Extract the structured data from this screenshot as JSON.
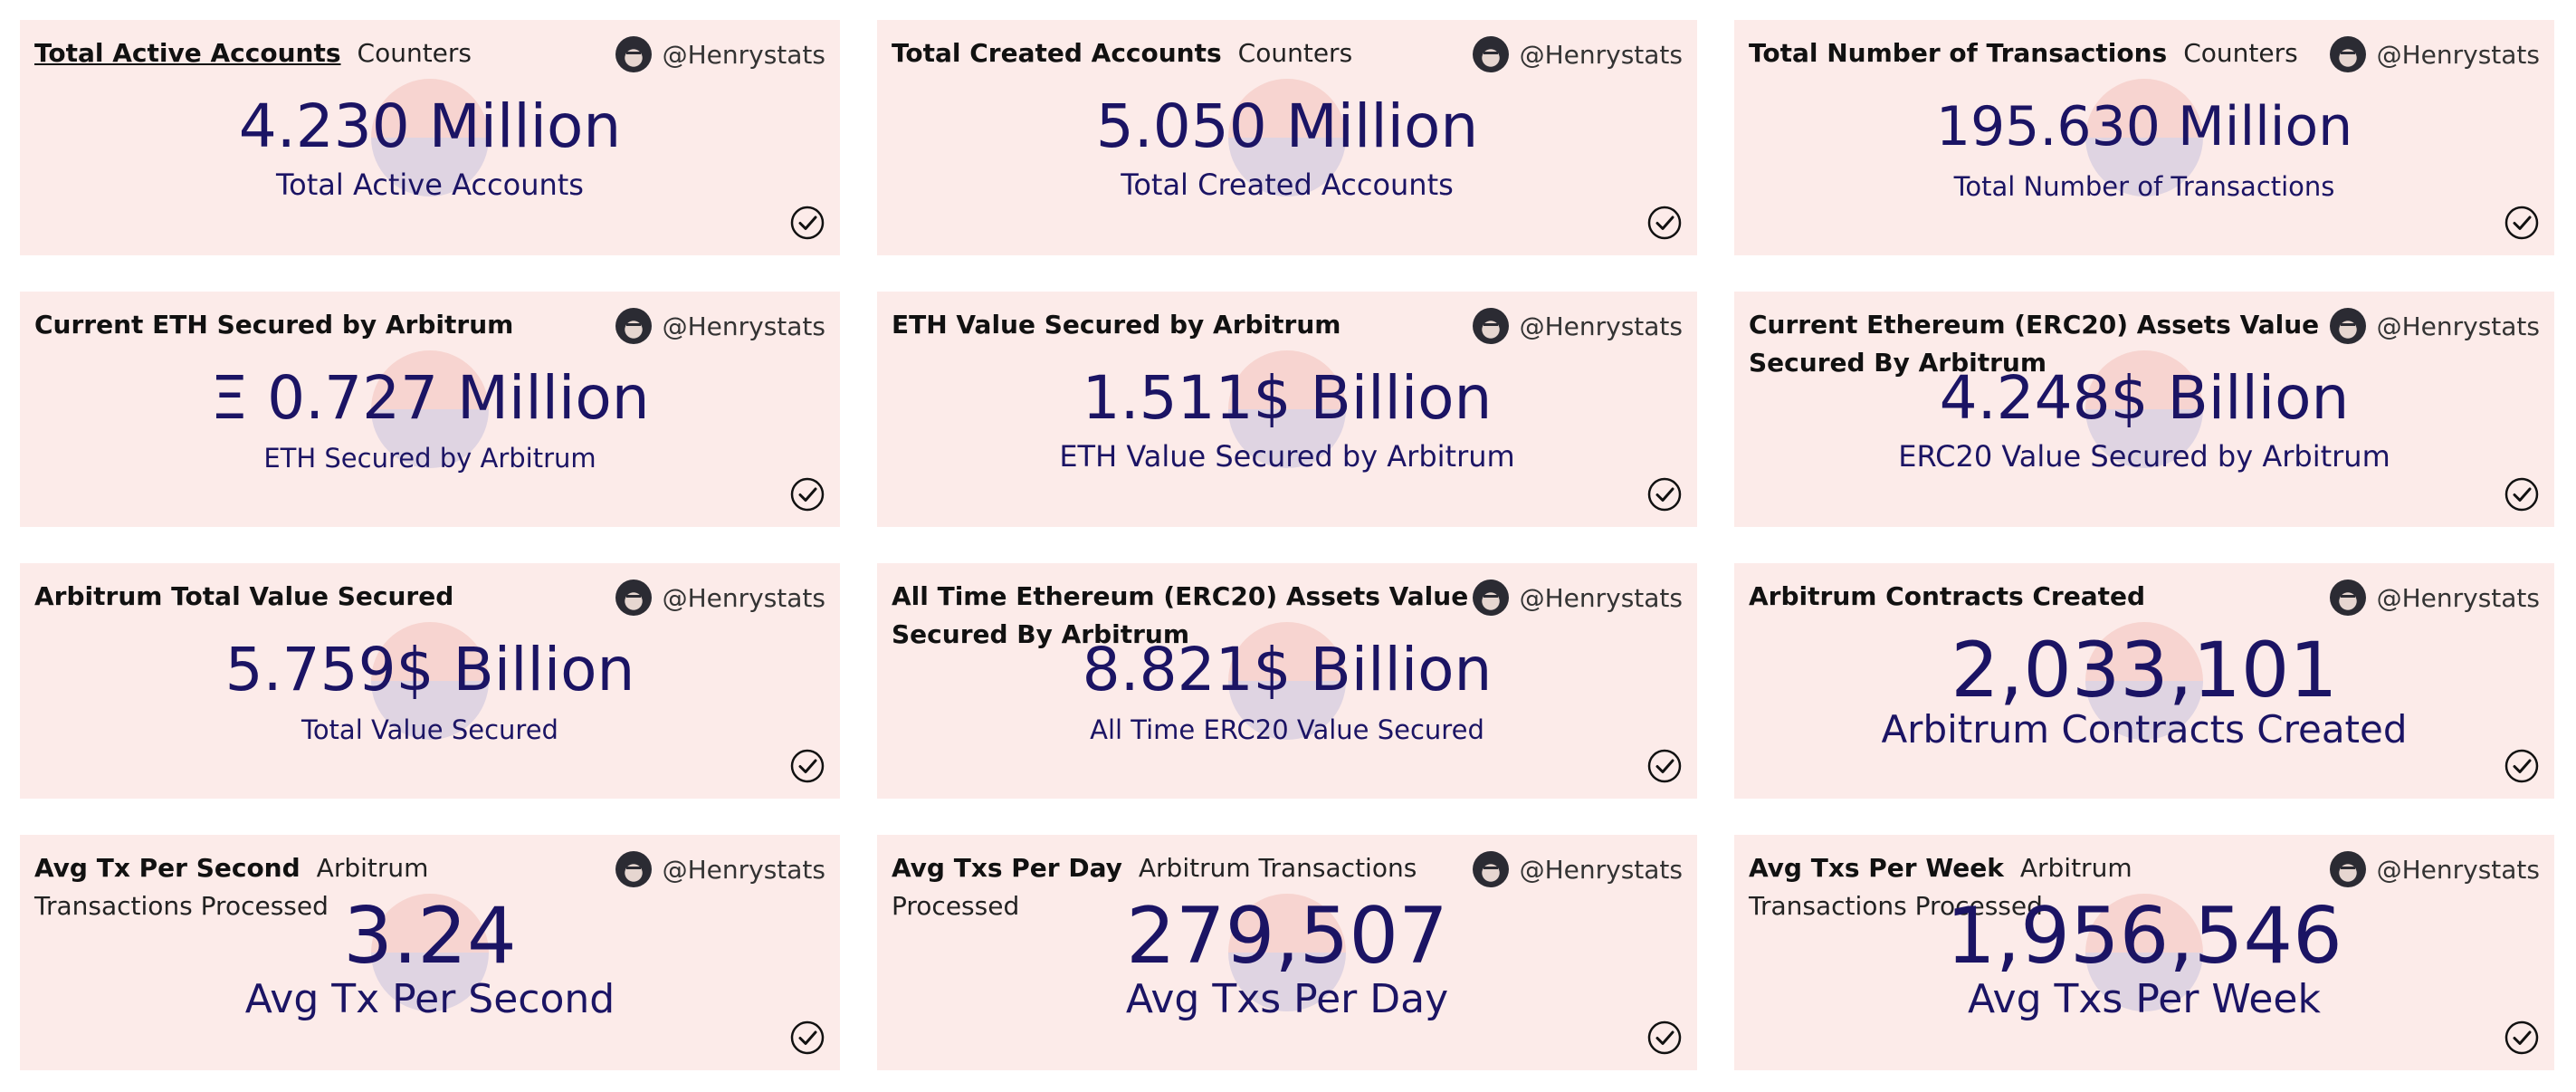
{
  "cards": [
    {
      "title": "Total Active Accounts",
      "subtitle": "Counters",
      "user": "@Henrystats",
      "value": "4.230 Million",
      "label": "Total Active Accounts"
    },
    {
      "title": "Total Created Accounts",
      "subtitle": "Counters",
      "user": "@Henrystats",
      "value": "5.050 Million",
      "label": "Total Created Accounts"
    },
    {
      "title": "Total Number of Transactions",
      "subtitle": "Counters",
      "user": "@Henrystats",
      "value": "195.630 Million",
      "label": "Total Number of Transactions"
    },
    {
      "title": "Current ETH Secured by Arbitrum",
      "subtitle": "",
      "user": "@Henrystats",
      "value": "Ξ 0.727 Million",
      "label": "ETH Secured by Arbitrum"
    },
    {
      "title": "ETH Value Secured by Arbitrum",
      "subtitle": "",
      "user": "@Henrystats",
      "value": "1.511$ Billion",
      "label": "ETH Value Secured by Arbitrum"
    },
    {
      "title": "Current Ethereum (ERC20) Assets Value Secured By Arbitrum",
      "subtitle": "",
      "user": "@Henrystats",
      "value": "4.248$ Billion",
      "label": "ERC20 Value Secured by Arbitrum"
    },
    {
      "title": "Arbitrum Total Value Secured",
      "subtitle": "",
      "user": "@Henrystats",
      "value": "5.759$ Billion",
      "label": "Total Value Secured"
    },
    {
      "title": "All Time Ethereum (ERC20) Assets Value Secured By Arbitrum",
      "subtitle": "",
      "user": "@Henrystats",
      "value": "8.821$ Billion",
      "label": "All Time ERC20 Value Secured"
    },
    {
      "title": "Arbitrum Contracts Created",
      "subtitle": "",
      "user": "@Henrystats",
      "value": "2,033,101",
      "label": "Arbitrum Contracts Created"
    },
    {
      "title": "Avg Tx Per Second",
      "subtitle": "Arbitrum Transactions Processed",
      "user": "@Henrystats",
      "value": "3.24",
      "label": "Avg Tx Per Second"
    },
    {
      "title": "Avg Txs Per Day",
      "subtitle": "Arbitrum Transactions Processed",
      "user": "@Henrystats",
      "value": "279,507",
      "label": "Avg Txs Per Day"
    },
    {
      "title": "Avg Txs Per Week",
      "subtitle": "Arbitrum Transactions Processed",
      "user": "@Henrystats",
      "value": "1,956,546",
      "label": "Avg Txs Per Week"
    }
  ],
  "colors": {
    "card_background": "#fcebe9",
    "value_text": "#1b1464",
    "title_text": "#111111"
  },
  "icons": {
    "avatar": "avatar",
    "verified": "check-circle-icon"
  }
}
